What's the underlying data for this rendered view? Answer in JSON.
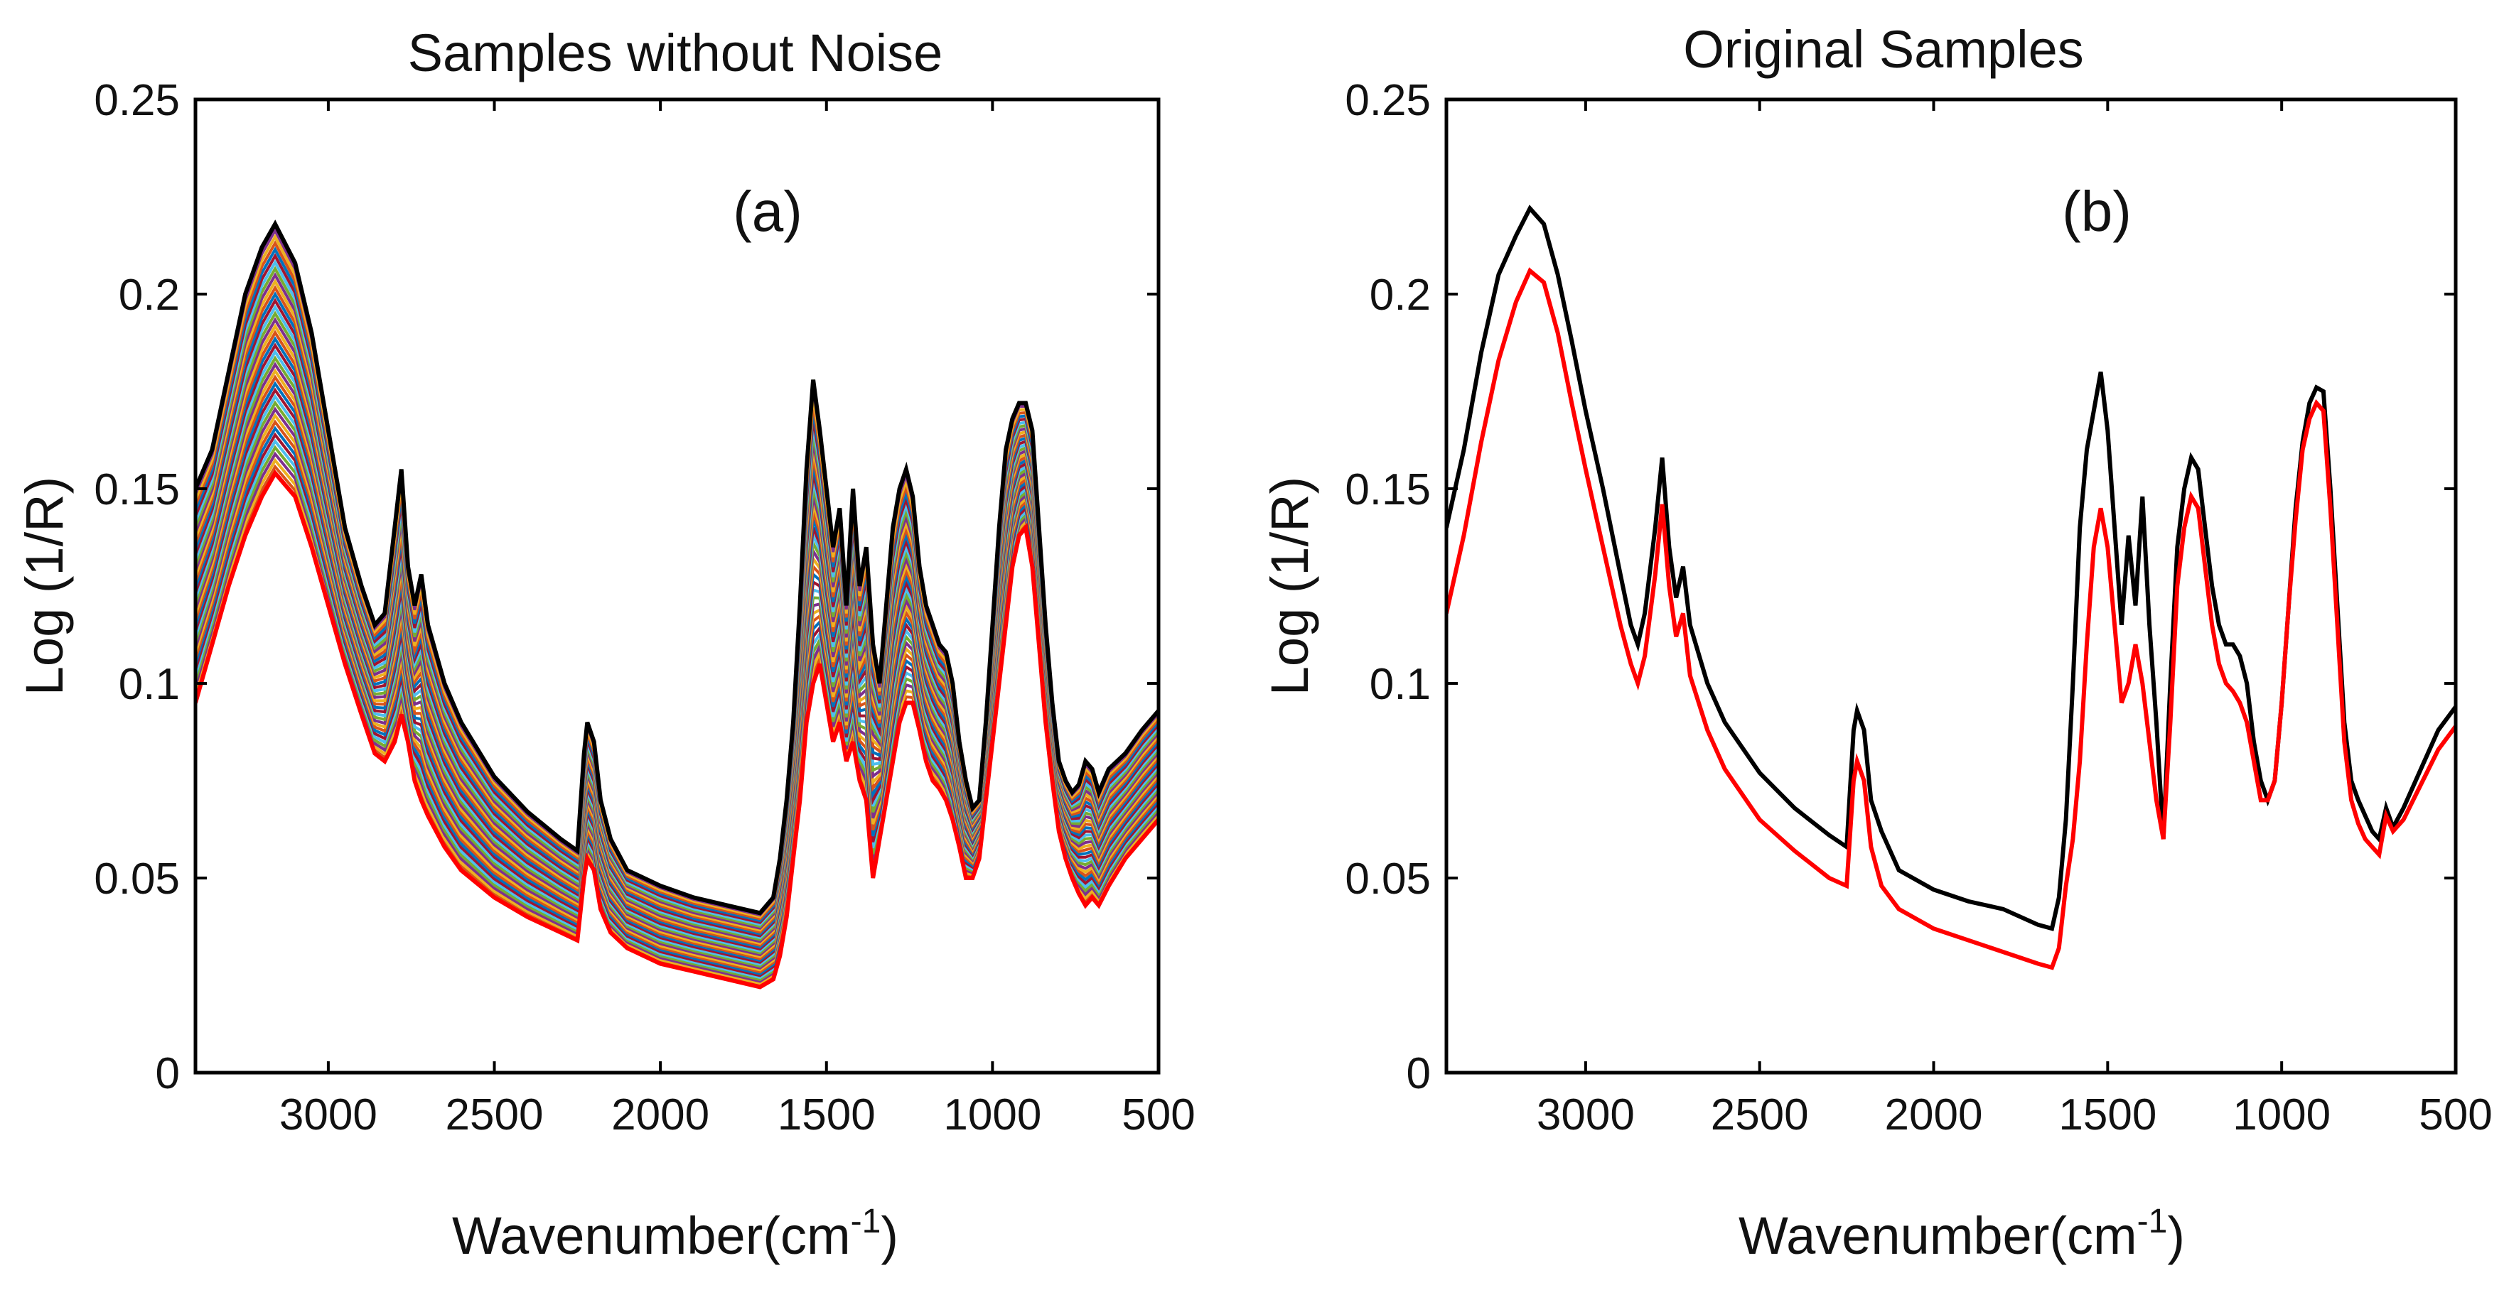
{
  "chart_data": [
    {
      "type": "line",
      "title": "Samples without Noise",
      "panel_label": "(a)",
      "xlabel": "Wavenumber(cm",
      "xlabel_sup": "-1",
      "xlabel_end": ")",
      "ylabel": "Log (1/R)",
      "xlim": [
        3400,
        500
      ],
      "ylim": [
        0,
        0.25
      ],
      "xticks": [
        3000,
        2500,
        2000,
        1500,
        1000,
        500
      ],
      "xtick_labels": [
        "3000",
        "2500",
        "2000",
        "1500",
        "1000",
        "500"
      ],
      "yticks": [
        0,
        0.05,
        0.1,
        0.15,
        0.2,
        0.25
      ],
      "ytick_labels": [
        "0",
        "0.05",
        "0.1",
        "0.15",
        "0.2",
        "0.25"
      ],
      "series_count": 40,
      "series_colors": [
        "#0072BD",
        "#D95319",
        "#EDB120",
        "#7E2F8E",
        "#77AC30",
        "#4DBEEE",
        "#A2142F"
      ],
      "upper_envelope_color": "#000000",
      "lower_envelope_color": "#FF0000",
      "upper_envelope": {
        "x": [
          3400,
          3350,
          3300,
          3250,
          3200,
          3160,
          3100,
          3050,
          3000,
          2950,
          2900,
          2860,
          2830,
          2800,
          2780,
          2760,
          2740,
          2720,
          2700,
          2650,
          2600,
          2500,
          2400,
          2300,
          2250,
          2230,
          2220,
          2200,
          2180,
          2150,
          2100,
          2000,
          1900,
          1800,
          1700,
          1660,
          1640,
          1620,
          1600,
          1580,
          1560,
          1540,
          1520,
          1500,
          1480,
          1460,
          1440,
          1420,
          1400,
          1380,
          1360,
          1340,
          1320,
          1300,
          1280,
          1260,
          1240,
          1220,
          1200,
          1180,
          1160,
          1140,
          1120,
          1100,
          1080,
          1060,
          1040,
          1020,
          1000,
          980,
          960,
          940,
          920,
          900,
          880,
          860,
          840,
          820,
          800,
          780,
          760,
          740,
          720,
          700,
          680,
          650,
          600,
          550,
          500
        ],
        "y": [
          0.15,
          0.16,
          0.18,
          0.2,
          0.212,
          0.218,
          0.208,
          0.19,
          0.165,
          0.14,
          0.125,
          0.115,
          0.118,
          0.14,
          0.155,
          0.13,
          0.12,
          0.128,
          0.115,
          0.1,
          0.09,
          0.076,
          0.067,
          0.06,
          0.057,
          0.082,
          0.09,
          0.085,
          0.07,
          0.06,
          0.052,
          0.048,
          0.045,
          0.043,
          0.041,
          0.045,
          0.055,
          0.07,
          0.09,
          0.12,
          0.155,
          0.178,
          0.165,
          0.15,
          0.135,
          0.145,
          0.12,
          0.15,
          0.125,
          0.135,
          0.11,
          0.1,
          0.12,
          0.14,
          0.15,
          0.155,
          0.148,
          0.13,
          0.12,
          0.115,
          0.11,
          0.108,
          0.1,
          0.085,
          0.075,
          0.068,
          0.07,
          0.09,
          0.115,
          0.14,
          0.16,
          0.168,
          0.172,
          0.172,
          0.165,
          0.14,
          0.115,
          0.095,
          0.08,
          0.075,
          0.072,
          0.074,
          0.08,
          0.078,
          0.072,
          0.078,
          0.082,
          0.088,
          0.093
        ]
      },
      "lower_envelope": {
        "x": [
          3400,
          3350,
          3300,
          3250,
          3200,
          3160,
          3100,
          3050,
          3000,
          2950,
          2900,
          2860,
          2830,
          2800,
          2780,
          2760,
          2740,
          2720,
          2700,
          2650,
          2600,
          2500,
          2400,
          2300,
          2250,
          2230,
          2220,
          2200,
          2180,
          2150,
          2100,
          2000,
          1900,
          1800,
          1700,
          1660,
          1640,
          1620,
          1600,
          1580,
          1560,
          1540,
          1520,
          1500,
          1480,
          1460,
          1440,
          1420,
          1400,
          1380,
          1360,
          1340,
          1320,
          1300,
          1280,
          1260,
          1240,
          1220,
          1200,
          1180,
          1160,
          1140,
          1120,
          1100,
          1080,
          1060,
          1040,
          1020,
          1000,
          980,
          960,
          940,
          920,
          900,
          880,
          860,
          840,
          820,
          800,
          780,
          760,
          740,
          720,
          700,
          680,
          650,
          600,
          550,
          500
        ],
        "y": [
          0.095,
          0.11,
          0.125,
          0.138,
          0.148,
          0.154,
          0.148,
          0.135,
          0.12,
          0.105,
          0.092,
          0.082,
          0.08,
          0.085,
          0.092,
          0.085,
          0.075,
          0.07,
          0.066,
          0.058,
          0.052,
          0.045,
          0.04,
          0.036,
          0.034,
          0.05,
          0.055,
          0.052,
          0.042,
          0.036,
          0.032,
          0.028,
          0.026,
          0.024,
          0.022,
          0.024,
          0.03,
          0.04,
          0.055,
          0.07,
          0.09,
          0.1,
          0.105,
          0.095,
          0.085,
          0.09,
          0.08,
          0.085,
          0.075,
          0.07,
          0.05,
          0.06,
          0.07,
          0.08,
          0.09,
          0.095,
          0.095,
          0.088,
          0.08,
          0.075,
          0.073,
          0.07,
          0.065,
          0.058,
          0.05,
          0.05,
          0.055,
          0.07,
          0.085,
          0.1,
          0.115,
          0.13,
          0.138,
          0.14,
          0.13,
          0.11,
          0.09,
          0.075,
          0.062,
          0.055,
          0.05,
          0.046,
          0.043,
          0.045,
          0.043,
          0.048,
          0.055,
          0.06,
          0.065
        ]
      }
    },
    {
      "type": "line",
      "title": "Original Samples",
      "panel_label": "(b)",
      "xlabel": "Wavenumber(cm",
      "xlabel_sup": "-1",
      "xlabel_end": ")",
      "ylabel": "Log (1/R)",
      "xlim": [
        3400,
        500
      ],
      "ylim": [
        0,
        0.25
      ],
      "xticks": [
        3000,
        2500,
        2000,
        1500,
        1000,
        500
      ],
      "xtick_labels": [
        "3000",
        "2500",
        "2000",
        "1500",
        "1000",
        "500"
      ],
      "yticks": [
        0,
        0.05,
        0.1,
        0.15,
        0.2,
        0.25
      ],
      "ytick_labels": [
        "0",
        "0.05",
        "0.1",
        "0.15",
        "0.2",
        "0.25"
      ],
      "series": [
        {
          "name": "black",
          "color": "#000000",
          "x": [
            3400,
            3350,
            3300,
            3250,
            3200,
            3160,
            3120,
            3080,
            3040,
            3000,
            2950,
            2900,
            2870,
            2850,
            2830,
            2800,
            2780,
            2760,
            2740,
            2720,
            2700,
            2650,
            2600,
            2500,
            2400,
            2300,
            2250,
            2230,
            2220,
            2200,
            2180,
            2150,
            2100,
            2000,
            1900,
            1800,
            1700,
            1660,
            1640,
            1620,
            1600,
            1580,
            1560,
            1540,
            1520,
            1500,
            1480,
            1460,
            1440,
            1420,
            1400,
            1380,
            1360,
            1340,
            1320,
            1300,
            1280,
            1260,
            1240,
            1220,
            1200,
            1180,
            1160,
            1140,
            1120,
            1100,
            1080,
            1060,
            1040,
            1020,
            1000,
            980,
            960,
            940,
            920,
            900,
            880,
            860,
            840,
            820,
            800,
            780,
            760,
            740,
            720,
            700,
            680,
            650,
            600,
            550,
            500
          ],
          "y": [
            0.14,
            0.16,
            0.185,
            0.205,
            0.215,
            0.222,
            0.218,
            0.205,
            0.188,
            0.17,
            0.15,
            0.128,
            0.115,
            0.11,
            0.118,
            0.14,
            0.158,
            0.135,
            0.122,
            0.13,
            0.115,
            0.1,
            0.09,
            0.077,
            0.068,
            0.061,
            0.058,
            0.088,
            0.093,
            0.088,
            0.07,
            0.062,
            0.052,
            0.047,
            0.044,
            0.042,
            0.038,
            0.037,
            0.045,
            0.065,
            0.1,
            0.14,
            0.16,
            0.17,
            0.18,
            0.165,
            0.14,
            0.115,
            0.138,
            0.12,
            0.148,
            0.115,
            0.09,
            0.06,
            0.1,
            0.135,
            0.15,
            0.158,
            0.155,
            0.14,
            0.125,
            0.115,
            0.11,
            0.11,
            0.107,
            0.1,
            0.085,
            0.075,
            0.07,
            0.075,
            0.095,
            0.12,
            0.145,
            0.162,
            0.172,
            0.176,
            0.175,
            0.15,
            0.12,
            0.09,
            0.075,
            0.07,
            0.066,
            0.062,
            0.06,
            0.068,
            0.063,
            0.068,
            0.078,
            0.088,
            0.094
          ]
        },
        {
          "name": "red",
          "color": "#FF0000",
          "x": [
            3400,
            3350,
            3300,
            3250,
            3200,
            3160,
            3120,
            3080,
            3040,
            3000,
            2950,
            2900,
            2870,
            2850,
            2830,
            2800,
            2780,
            2760,
            2740,
            2720,
            2700,
            2650,
            2600,
            2500,
            2400,
            2300,
            2250,
            2230,
            2220,
            2200,
            2180,
            2150,
            2100,
            2000,
            1900,
            1800,
            1700,
            1660,
            1640,
            1620,
            1600,
            1580,
            1560,
            1540,
            1520,
            1500,
            1480,
            1460,
            1440,
            1420,
            1400,
            1380,
            1360,
            1340,
            1320,
            1300,
            1280,
            1260,
            1240,
            1220,
            1200,
            1180,
            1160,
            1140,
            1120,
            1100,
            1080,
            1060,
            1040,
            1020,
            1000,
            980,
            960,
            940,
            920,
            900,
            880,
            860,
            840,
            820,
            800,
            780,
            760,
            740,
            720,
            700,
            680,
            650,
            600,
            550,
            500
          ],
          "y": [
            0.118,
            0.138,
            0.162,
            0.183,
            0.198,
            0.206,
            0.203,
            0.19,
            0.172,
            0.155,
            0.135,
            0.115,
            0.105,
            0.1,
            0.107,
            0.128,
            0.146,
            0.125,
            0.112,
            0.118,
            0.102,
            0.088,
            0.078,
            0.065,
            0.057,
            0.05,
            0.048,
            0.075,
            0.08,
            0.075,
            0.058,
            0.048,
            0.042,
            0.037,
            0.034,
            0.031,
            0.028,
            0.027,
            0.032,
            0.048,
            0.06,
            0.08,
            0.11,
            0.135,
            0.145,
            0.135,
            0.115,
            0.095,
            0.1,
            0.11,
            0.1,
            0.085,
            0.07,
            0.06,
            0.09,
            0.125,
            0.14,
            0.148,
            0.145,
            0.13,
            0.115,
            0.105,
            0.1,
            0.098,
            0.095,
            0.09,
            0.08,
            0.07,
            0.07,
            0.075,
            0.095,
            0.12,
            0.142,
            0.16,
            0.168,
            0.172,
            0.17,
            0.145,
            0.115,
            0.085,
            0.07,
            0.064,
            0.06,
            0.058,
            0.056,
            0.066,
            0.062,
            0.065,
            0.074,
            0.083,
            0.089
          ]
        }
      ]
    }
  ]
}
